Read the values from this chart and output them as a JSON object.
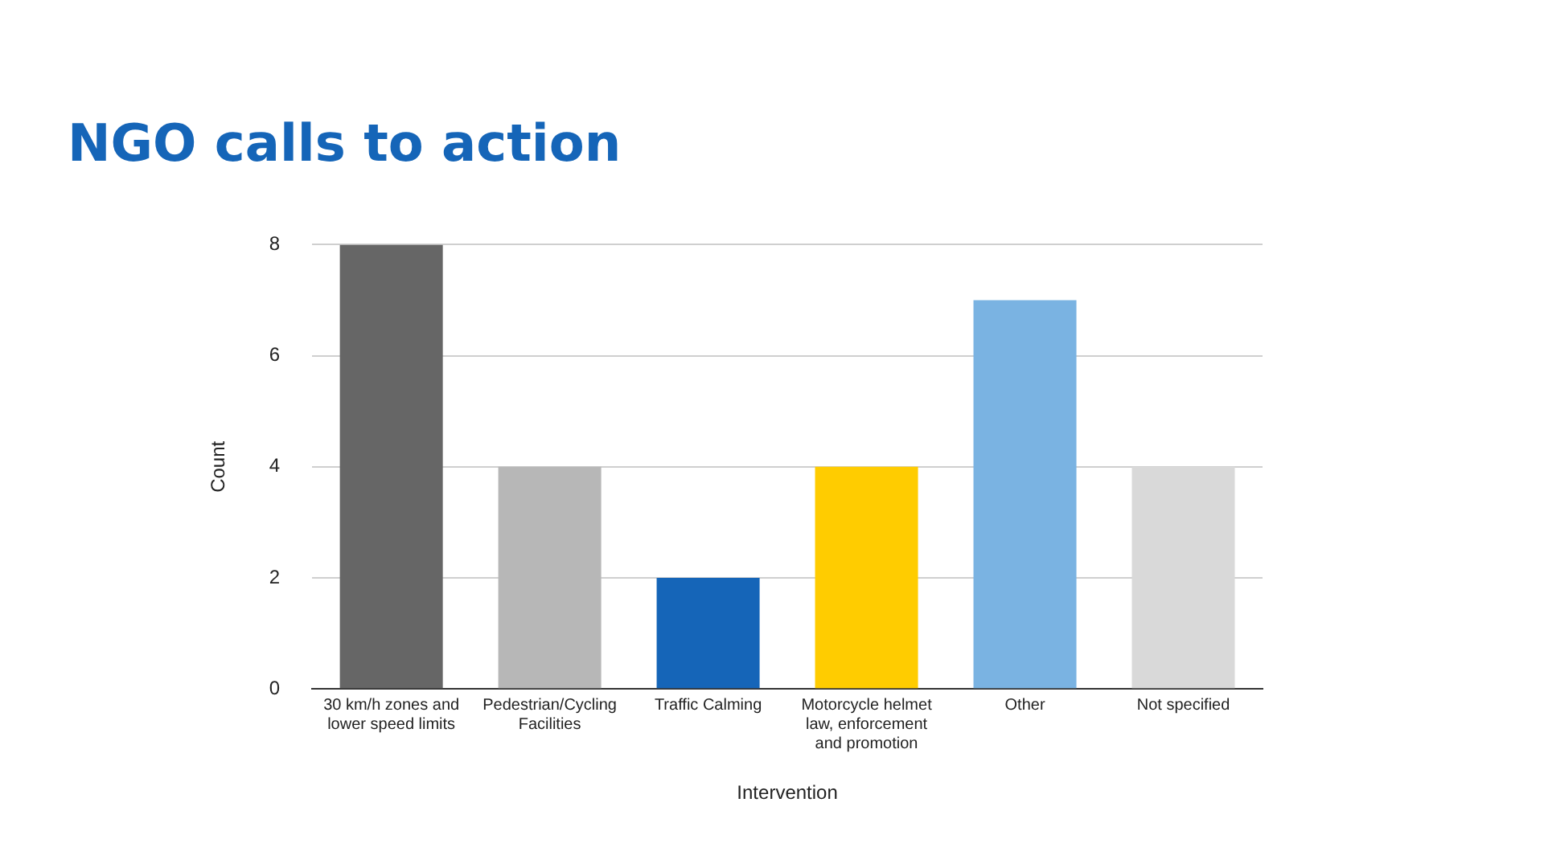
{
  "chart_data": {
    "type": "bar",
    "title": "NGO calls to action",
    "xlabel": "Intervention",
    "ylabel": "Count",
    "categories": [
      "30 km/h zones and lower speed limits",
      "Pedestrian/Cycling Facilities",
      "Traffic Calming",
      "Motorcycle helmet law, enforcement and promotion",
      "Other",
      "Not specified"
    ],
    "values": [
      8,
      4,
      2,
      4,
      7,
      4
    ],
    "colors": [
      "#666666",
      "#b7b7b7",
      "#1565b8",
      "#ffcc00",
      "#7ab3e2",
      "#d9d9d9"
    ],
    "ylim": [
      0,
      8
    ],
    "yticks": [
      0,
      2,
      4,
      6,
      8
    ],
    "grid": "y",
    "legend": false
  }
}
